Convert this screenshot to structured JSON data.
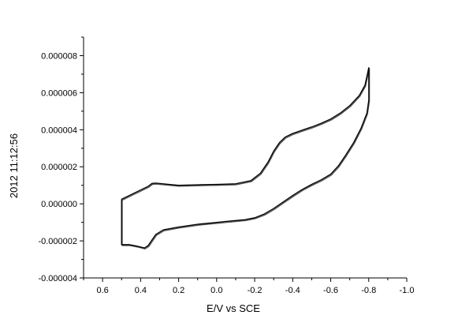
{
  "chart_data": {
    "type": "line",
    "title": "",
    "xlabel": "E/V vs SCE",
    "ylabel": "",
    "side_text": "2012   11:12:56",
    "xlim": [
      0.7,
      -1.0
    ],
    "ylim": [
      -4e-06,
      9e-06
    ],
    "x_reversed": true,
    "grid": false,
    "legend": "none",
    "x_ticks": [
      {
        "value": 0.6,
        "label": "0.6"
      },
      {
        "value": 0.4,
        "label": "0.4"
      },
      {
        "value": 0.2,
        "label": "0.2"
      },
      {
        "value": 0.0,
        "label": "0.0"
      },
      {
        "value": -0.2,
        "label": "-0.2"
      },
      {
        "value": -0.4,
        "label": "-0.4"
      },
      {
        "value": -0.6,
        "label": "-0.6"
      },
      {
        "value": -0.8,
        "label": "-0.8"
      },
      {
        "value": -1.0,
        "label": "-1.0"
      }
    ],
    "y_ticks": [
      {
        "value": -4e-06,
        "label": "-0.000004"
      },
      {
        "value": -2e-06,
        "label": "-0.000002"
      },
      {
        "value": 0.0,
        "label": "0.000000"
      },
      {
        "value": 2e-06,
        "label": "0.000002"
      },
      {
        "value": 4e-06,
        "label": "0.000004"
      },
      {
        "value": 6e-06,
        "label": "0.000006"
      },
      {
        "value": 8e-06,
        "label": "0.000008"
      }
    ],
    "series": [
      {
        "color": "#000000",
        "x": [
          0.5,
          0.45,
          0.4,
          0.36,
          0.34,
          0.32,
          0.25,
          0.2,
          0.1,
          0.0,
          -0.1,
          -0.18,
          -0.23,
          -0.27,
          -0.3,
          -0.33,
          -0.36,
          -0.4,
          -0.45,
          -0.5,
          -0.55,
          -0.6,
          -0.65,
          -0.7,
          -0.75,
          -0.78,
          -0.8,
          -0.8,
          -0.79,
          -0.76,
          -0.72,
          -0.68,
          -0.64,
          -0.6,
          -0.55,
          -0.5,
          -0.45,
          -0.4,
          -0.35,
          -0.3,
          -0.25,
          -0.2,
          -0.15,
          -0.1,
          -0.05,
          0.0,
          0.1,
          0.2,
          0.28,
          0.32,
          0.34,
          0.36,
          0.38,
          0.42,
          0.46,
          0.5,
          0.5
        ],
        "y": [
          2.5e-07,
          5e-07,
          7.5e-07,
          9.5e-07,
          1.1e-06,
          1.12e-06,
          1.05e-06,
          1e-06,
          1.03e-06,
          1.05e-06,
          1.08e-06,
          1.25e-06,
          1.65e-06,
          2.25e-06,
          2.85e-06,
          3.3e-06,
          3.6e-06,
          3.8e-06,
          3.98e-06,
          4.15e-06,
          4.35e-06,
          4.58e-06,
          4.9e-06,
          5.3e-06,
          5.85e-06,
          6.4e-06,
          7.35e-06,
          5.6e-06,
          4.9e-06,
          4.1e-06,
          3.3e-06,
          2.65e-06,
          2.05e-06,
          1.6e-06,
          1.3e-06,
          1.05e-06,
          7.8e-07,
          4.5e-07,
          1e-07,
          -2.5e-07,
          -5.5e-07,
          -7.5e-07,
          -8.5e-07,
          -9e-07,
          -9.5e-07,
          -1e-06,
          -1.1e-06,
          -1.25e-06,
          -1.4e-06,
          -1.65e-06,
          -1.95e-06,
          -2.25e-06,
          -2.38e-06,
          -2.28e-06,
          -2.2e-06,
          -2.2e-06,
          2.5e-07
        ]
      }
    ]
  }
}
